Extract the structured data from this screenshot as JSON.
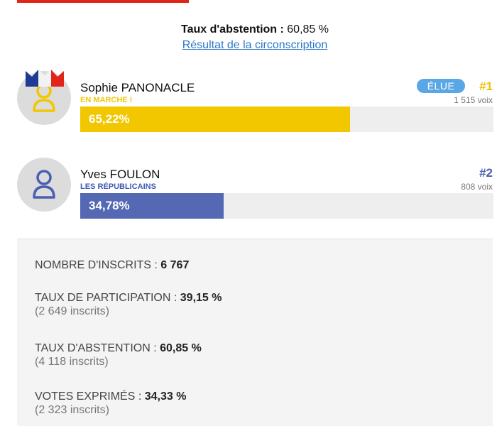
{
  "header": {
    "abstention_label": "Taux d'abstention :",
    "abstention_value": "60,85 %",
    "circonscription_link": "Résultat de la circonscription"
  },
  "candidates": [
    {
      "name": "Sophie PANONACLE",
      "party": "EN MARCHE !",
      "percent_text": "65,22%",
      "percent": 65.22,
      "badge": "ÉLUE",
      "rank": "#1",
      "votes": "1 515 voix",
      "color": "#f2c700",
      "icon": "user-icon"
    },
    {
      "name": "Yves FOULON",
      "party": "LES RÉPUBLICAINS",
      "percent_text": "34,78%",
      "percent": 34.78,
      "rank": "#2",
      "votes": "808 voix",
      "color": "#5468b4",
      "icon": "user-icon"
    }
  ],
  "stats": {
    "inscrits_label": "NOMBRE D'INSCRITS :",
    "inscrits_value": "6 767",
    "participation_label": "TAUX DE PARTICIPATION :",
    "participation_value": "39,15 %",
    "participation_sub": "(2 649 inscrits)",
    "abstention_label": "TAUX D'ABSTENTION :",
    "abstention_value": "60,85 %",
    "abstention_sub": "(4 118 inscrits)",
    "exprimes_label": "VOTES EXPRIMÉS :",
    "exprimes_value": "34,33 %",
    "exprimes_sub": "(2 323 inscrits)"
  },
  "colors": {
    "accent": "#e1251b",
    "link": "#2a78c8",
    "badge": "#5aa7e6"
  }
}
